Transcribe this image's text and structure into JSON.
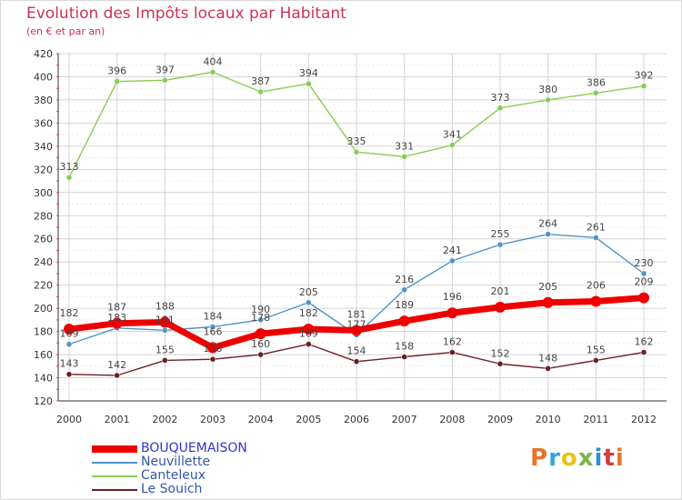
{
  "header": {
    "title": "Evolution des Impôts locaux par Habitant",
    "subtitle": "(en € et par an)"
  },
  "logo": {
    "text": "Proxiti",
    "colors": [
      "#e8742a",
      "#3aa4d8",
      "#e8c21c",
      "#7ab648",
      "#2f8fcc",
      "#d33b3b",
      "#e8742a"
    ]
  },
  "chart_data": {
    "type": "line",
    "title": "Evolution des Impôts locaux par Habitant",
    "subtitle": "(en € et par an)",
    "xlabel": "",
    "ylabel": "",
    "categories": [
      "2000",
      "2001",
      "2002",
      "2003",
      "2004",
      "2005",
      "2006",
      "2007",
      "2008",
      "2009",
      "2010",
      "2011",
      "2012"
    ],
    "ylim": [
      120,
      420
    ],
    "yticks": [
      120,
      140,
      160,
      180,
      200,
      220,
      240,
      260,
      280,
      300,
      320,
      340,
      360,
      380,
      400,
      420
    ],
    "grid": true,
    "legend_position": "bottom-left",
    "series": [
      {
        "name": "BOUQUEMAISON",
        "color": "#ee0000",
        "values": [
          182,
          187,
          188,
          166,
          178,
          182,
          181,
          189,
          196,
          201,
          205,
          206,
          209
        ]
      },
      {
        "name": "Neuvillette",
        "color": "#4f94c8",
        "values": [
          169,
          183,
          181,
          184,
          190,
          205,
          177,
          216,
          241,
          255,
          264,
          261,
          230
        ]
      },
      {
        "name": "Canteleux",
        "color": "#88cc55",
        "values": [
          313,
          396,
          397,
          404,
          387,
          394,
          335,
          331,
          341,
          373,
          380,
          386,
          392
        ]
      },
      {
        "name": "Le Souich",
        "color": "#6b1f24",
        "values": [
          143,
          142,
          155,
          156,
          160,
          169,
          154,
          158,
          162,
          152,
          148,
          155,
          162
        ]
      }
    ],
    "data_labels": [
      [
        182,
        187,
        188,
        166,
        178,
        182,
        181,
        189,
        196,
        201,
        205,
        206,
        209
      ],
      [
        169,
        183,
        181,
        184,
        190,
        205,
        177,
        216,
        241,
        255,
        264,
        261,
        230
      ],
      [
        313,
        396,
        397,
        404,
        387,
        394,
        335,
        331,
        341,
        373,
        380,
        386,
        392
      ],
      [
        143,
        142,
        155,
        156,
        160,
        169,
        154,
        158,
        162,
        152,
        148,
        155,
        162
      ]
    ]
  }
}
